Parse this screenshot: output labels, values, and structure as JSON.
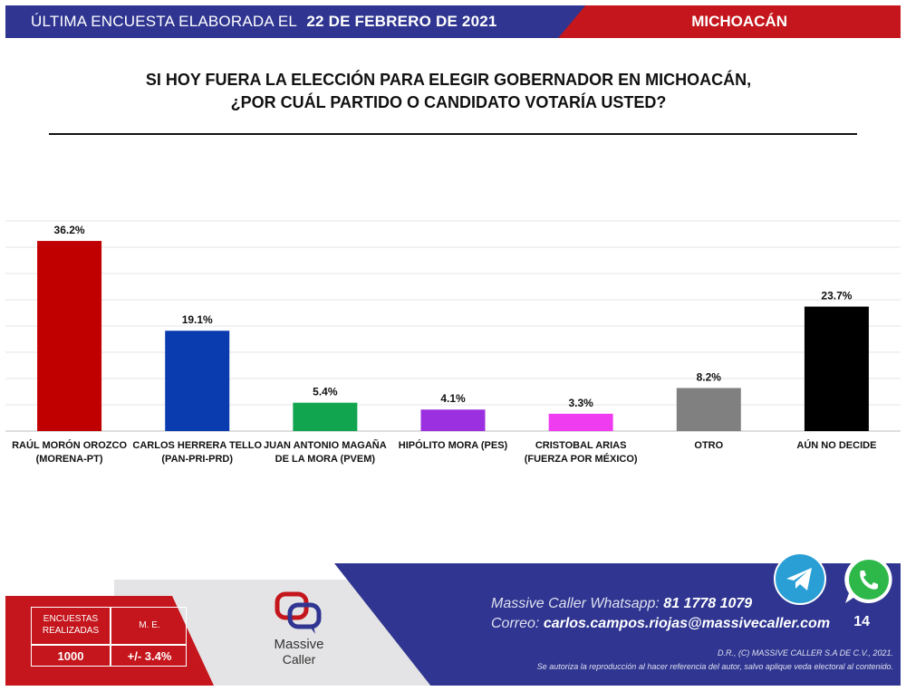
{
  "header": {
    "left_label": "ÚLTIMA ENCUESTA ELABORADA EL",
    "date": "22 DE FEBRERO DE 2021",
    "region": "MICHOACÁN",
    "colors": {
      "blue": "#2f3590",
      "red": "#c4161c"
    }
  },
  "question": {
    "line1": "SI HOY FUERA LA ELECCIÓN PARA ELEGIR GOBERNADOR EN MICHOACÁN,",
    "line2": "¿POR CUÁL PARTIDO O CANDIDATO VOTARÍA USTED?"
  },
  "chart_data": {
    "type": "bar",
    "title": "",
    "xlabel": "",
    "ylabel": "",
    "ylim": [
      0,
      40
    ],
    "grid": true,
    "categories": [
      [
        "RAÚL MORÓN OROZCO",
        "(MORENA-PT)"
      ],
      [
        "CARLOS HERRERA TELLO",
        "(PAN-PRI-PRD)"
      ],
      [
        "JUAN ANTONIO MAGAÑA",
        "DE LA MORA (PVEM)"
      ],
      [
        "HIPÓLITO MORA (PES)"
      ],
      [
        "CRISTOBAL ARIAS",
        "(FUERZA POR MÉXICO)"
      ],
      [
        "OTRO"
      ],
      [
        "AÚN NO DECIDE"
      ]
    ],
    "values": [
      36.2,
      19.1,
      5.4,
      4.1,
      3.3,
      8.2,
      23.7
    ],
    "value_labels": [
      "36.2%",
      "19.1%",
      "5.4%",
      "4.1%",
      "3.3%",
      "8.2%",
      "23.7%"
    ],
    "colors": [
      "#c00000",
      "#0a3cb0",
      "#12a550",
      "#9b30e0",
      "#f03cf0",
      "#808080",
      "#000000"
    ]
  },
  "footer": {
    "stats": {
      "h1": "ENCUESTAS REALIZADAS",
      "h2": "M. E.",
      "v1": "1000",
      "v2": "+/- 3.4%"
    },
    "logo": {
      "line1": "Massive",
      "line2": "Caller"
    },
    "whatsapp_label": "Massive Caller Whatsapp:",
    "whatsapp_number": "81 1778 1079",
    "email_label": "Correo:",
    "email": "carlos.campos.riojas@massivecaller.com",
    "legal_line1": "D.R., (C) MASSIVE CALLER S.A DE C.V., 2021.",
    "legal_line2": "Se autoriza la reproducción al hacer referencia del autor, salvo aplique veda electoral al contenido.",
    "page_number": "14",
    "icons": [
      "telegram-icon",
      "whatsapp-icon"
    ]
  }
}
